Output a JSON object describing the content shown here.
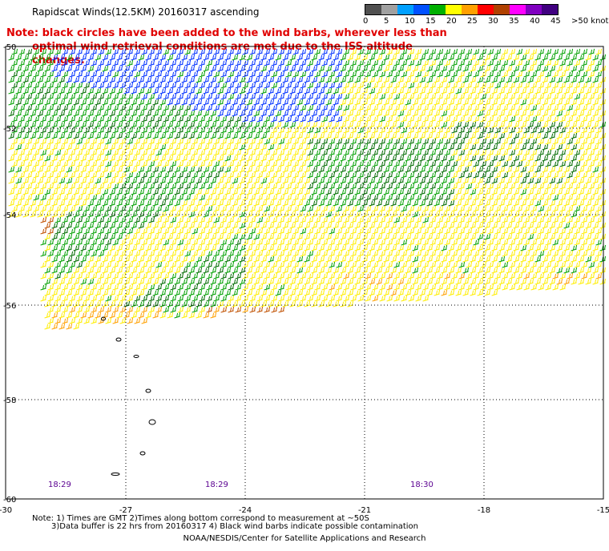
{
  "header": {
    "title": "Rapidscat Winds(12.5KM) 20160317 ascending",
    "note_line1": "Note: black circles have been added to the wind barbs, wherever less than",
    "note_line2": "optimal wind retrieval conditions are met due to the ISS altitude changes."
  },
  "colorbar": {
    "labels": [
      "0",
      "5",
      "10",
      "15",
      "20",
      "25",
      "30",
      "35",
      "40",
      "45",
      ">50 knots"
    ],
    "colors": [
      "#505050",
      "#a0a0a0",
      "#00a0ff",
      "#0050ff",
      "#00b000",
      "#ffff00",
      "#ffa000",
      "#ff0000",
      "#b04000",
      "#ff00ff",
      "#8000c0",
      "#400080"
    ]
  },
  "map": {
    "lon_ticks": [
      "-30",
      "-27",
      "-24",
      "-21",
      "-18",
      "-15"
    ],
    "lat_ticks": [
      "-50",
      "-52",
      "-54",
      "-56",
      "-58",
      "-60"
    ],
    "pass_times": [
      "18:29",
      "18:29",
      "18:30"
    ],
    "wind_field": {
      "color_zones": [
        {
          "label": "15-20 knots",
          "color": "#00a000"
        },
        {
          "label": "10-15 knots",
          "color": "#0030ff"
        },
        {
          "label": "20-25 knots",
          "color": "#ffee00"
        },
        {
          "label": "25-30 knots",
          "color": "#ffa000"
        },
        {
          "label": "30-35 knots",
          "color": "#c05000"
        },
        {
          "label": "dark green",
          "color": "#006a00"
        }
      ]
    }
  },
  "footer": {
    "notes_line1": "Note: 1) Times are GMT 2)Times along bottom correspond to measurement at ~50S",
    "notes_line2": "3)Data buffer is 22 hrs from 20160317 4) Black wind barbs indicate possible contamination",
    "credit": "NOAA/NESDIS/Center for Satellite Applications and Research"
  }
}
